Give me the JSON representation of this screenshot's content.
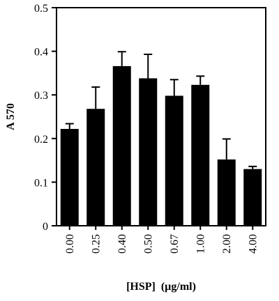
{
  "chart_data": {
    "type": "bar",
    "categories": [
      "0.00",
      "0.25",
      "0.40",
      "0.50",
      "0.67",
      "1.00",
      "2.00",
      "4.00"
    ],
    "values": [
      0.222,
      0.268,
      0.366,
      0.338,
      0.298,
      0.323,
      0.152,
      0.13
    ],
    "error_plus": [
      0.012,
      0.05,
      0.033,
      0.055,
      0.037,
      0.02,
      0.047,
      0.006
    ],
    "xlabel": "[HSP]  (µg/ml)",
    "ylabel": "A 570",
    "ylim": [
      0,
      0.5
    ],
    "yticks": [
      "0",
      "0.1",
      "0.2",
      "0.3",
      "0.4",
      "0.5"
    ],
    "grid": false,
    "bar_color": "#000000"
  }
}
